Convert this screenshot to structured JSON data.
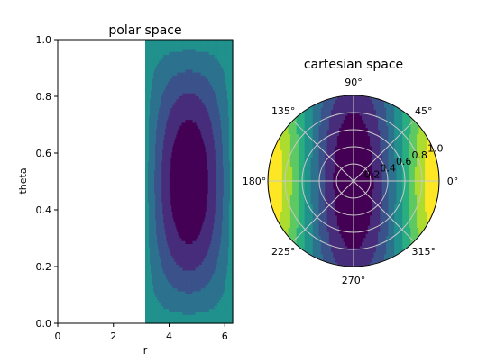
{
  "chart_data": [
    {
      "type": "heatmap",
      "subtype": "filled-contour",
      "title": "polar space",
      "xlabel": "r",
      "ylabel": "theta",
      "xlim": [
        0,
        6.283
      ],
      "ylim": [
        0,
        1
      ],
      "xticks": [
        0,
        2,
        4,
        6
      ],
      "xtick_labels": [
        "0",
        "2",
        "4",
        "6"
      ],
      "yticks": [
        0,
        0.2,
        0.4,
        0.6,
        0.8,
        1.0
      ],
      "ytick_labels": [
        "0.0",
        "0.2",
        "0.4",
        "0.6",
        "0.8",
        "1.0"
      ],
      "filled_region_x": [
        3.1416,
        6.283
      ],
      "grid": false,
      "colormap": "viridis",
      "levels": 9
    },
    {
      "type": "heatmap",
      "subtype": "polar-filled-contour",
      "title": "cartesian space",
      "theta_tick_labels": [
        "0°",
        "45°",
        "90°",
        "135°",
        "180°",
        "225°",
        "270°",
        "315°"
      ],
      "r_ticks": [
        0.2,
        0.4,
        0.6,
        0.8,
        1.0
      ],
      "r_tick_labels": [
        "0.2",
        "0.4",
        "0.6",
        "0.8",
        "1.0"
      ],
      "r_tick_label_angle": 22.5,
      "grid": true,
      "colormap": "viridis",
      "levels": 9
    }
  ],
  "colors": {
    "viridis": [
      "#440154",
      "#472d7b",
      "#3b528b",
      "#2c728e",
      "#21918c",
      "#28ae80",
      "#5ec962",
      "#addc30",
      "#fde725"
    ],
    "grid": "#c8c8c8",
    "axes": "#000000"
  }
}
